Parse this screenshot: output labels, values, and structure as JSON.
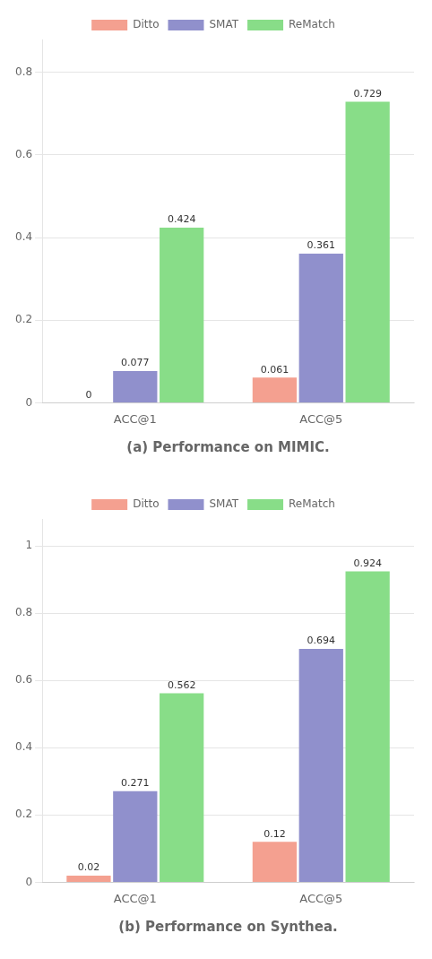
{
  "chart_data": [
    {
      "type": "bar",
      "xlabel": "(a) Performance on MIMIC.",
      "categories": [
        "ACC@1",
        "ACC@5"
      ],
      "series": [
        {
          "name": "Ditto",
          "color": "#F4A090",
          "values": [
            0,
            0.061
          ]
        },
        {
          "name": "SMAT",
          "color": "#9090CC",
          "values": [
            0.077,
            0.361
          ]
        },
        {
          "name": "ReMatch",
          "color": "#88DD88",
          "values": [
            0.424,
            0.729
          ]
        }
      ],
      "ylim": [
        0,
        0.88
      ],
      "yticks": [
        0,
        0.2,
        0.4,
        0.6,
        0.8
      ],
      "grid": true,
      "legend": "top",
      "data_labels": true
    },
    {
      "type": "bar",
      "xlabel": "(b) Performance on Synthea.",
      "categories": [
        "ACC@1",
        "ACC@5"
      ],
      "series": [
        {
          "name": "Ditto",
          "color": "#F4A090",
          "values": [
            0.02,
            0.12
          ]
        },
        {
          "name": "SMAT",
          "color": "#9090CC",
          "values": [
            0.271,
            0.694
          ]
        },
        {
          "name": "ReMatch",
          "color": "#88DD88",
          "values": [
            0.562,
            0.924
          ]
        }
      ],
      "ylim": [
        0,
        1.08
      ],
      "yticks": [
        0,
        0.2,
        0.4,
        0.6,
        0.8,
        1
      ],
      "grid": true,
      "legend": "top",
      "data_labels": true
    }
  ]
}
